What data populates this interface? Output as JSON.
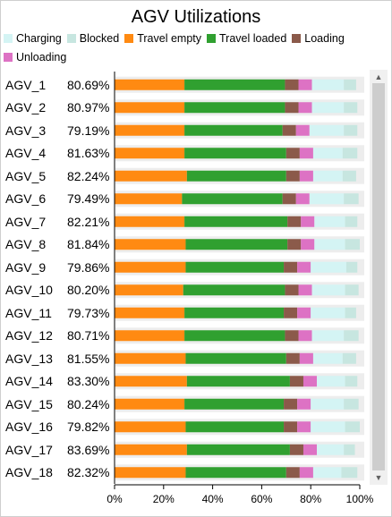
{
  "chart_data": {
    "type": "bar",
    "orientation": "horizontal",
    "stacked": true,
    "title": "AGV Utilizations",
    "legend_position": "top",
    "xlim": [
      0,
      100
    ],
    "x_ticks": [
      "0%",
      "20%",
      "40%",
      "60%",
      "80%",
      "100%"
    ],
    "colors": {
      "Charging": "#d4f4f4",
      "Blocked": "#c7e6e0",
      "Travel empty": "#ff8a12",
      "Travel loaded": "#30a030",
      "Loading": "#8b5a4a",
      "Unloading": "#dd72c4"
    },
    "legend": [
      "Charging",
      "Blocked",
      "Travel empty",
      "Travel loaded",
      "Loading",
      "Unloading"
    ],
    "categories": [
      "AGV_1",
      "AGV_2",
      "AGV_3",
      "AGV_4",
      "AGV_5",
      "AGV_6",
      "AGV_7",
      "AGV_8",
      "AGV_9",
      "AGV_10",
      "AGV_11",
      "AGV_12",
      "AGV_13",
      "AGV_14",
      "AGV_15",
      "AGV_16",
      "AGV_17",
      "AGV_18"
    ],
    "utilization_labels": [
      "80.69%",
      "80.97%",
      "79.19%",
      "81.63%",
      "82.24%",
      "79.49%",
      "82.21%",
      "81.84%",
      "79.86%",
      "80.20%",
      "79.73%",
      "80.71%",
      "81.55%",
      "83.30%",
      "80.24%",
      "79.82%",
      "83.69%",
      "82.32%"
    ],
    "series": [
      {
        "name": "Travel empty",
        "values": [
          28.5,
          28.5,
          28.5,
          28.5,
          29.5,
          27.5,
          28.5,
          29.0,
          29.0,
          28.0,
          28.5,
          28.5,
          29.0,
          29.5,
          28.5,
          29.0,
          29.5,
          29.0
        ]
      },
      {
        "name": "Travel loaded",
        "values": [
          41.0,
          41.0,
          40.0,
          41.5,
          40.5,
          41.0,
          42.0,
          41.5,
          40.0,
          41.5,
          40.5,
          41.0,
          41.0,
          42.0,
          40.5,
          40.0,
          42.0,
          41.0
        ]
      },
      {
        "name": "Loading",
        "values": [
          5.5,
          5.5,
          5.5,
          5.5,
          5.5,
          5.5,
          5.5,
          5.5,
          5.5,
          5.5,
          5.5,
          5.5,
          5.5,
          5.5,
          5.5,
          5.5,
          5.5,
          5.5
        ]
      },
      {
        "name": "Unloading",
        "values": [
          5.5,
          5.5,
          5.5,
          5.5,
          5.5,
          5.5,
          5.5,
          5.5,
          5.5,
          5.5,
          5.5,
          5.5,
          5.5,
          5.5,
          5.5,
          5.5,
          5.5,
          5.5
        ]
      },
      {
        "name": "Charging",
        "values": [
          13.0,
          13.0,
          14.0,
          12.0,
          12.0,
          14.0,
          12.5,
          12.5,
          14.5,
          13.5,
          14.0,
          13.0,
          12.0,
          11.5,
          13.5,
          14.0,
          11.0,
          11.5
        ]
      },
      {
        "name": "Blocked",
        "values": [
          5.0,
          5.5,
          5.5,
          6.0,
          5.5,
          6.0,
          5.0,
          6.0,
          4.5,
          5.5,
          4.5,
          6.0,
          5.5,
          5.0,
          6.0,
          6.0,
          4.5,
          6.5
        ]
      }
    ]
  }
}
